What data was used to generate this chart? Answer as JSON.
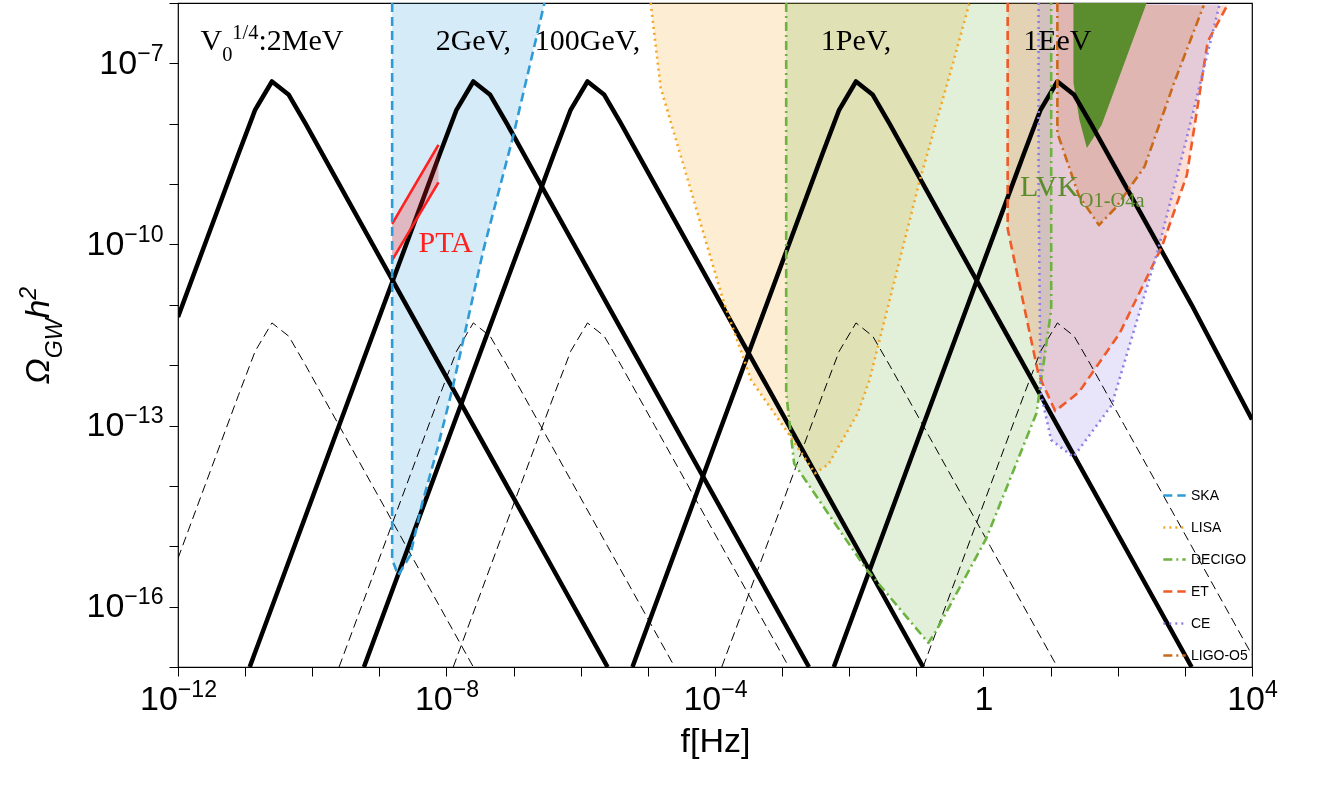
{
  "chart_data": {
    "type": "line",
    "xlabel": "f[Hz]",
    "ylabel": "Ω$_{GW}$h$^{2}$",
    "log": "xy",
    "legend": "bottom right",
    "xlim": [
      1e-12,
      10000
    ],
    "ylim": [
      1e-17,
      1e-06
    ],
    "xticks": [
      {
        "value": 1e-12,
        "label": "10$^{−12}$"
      },
      {
        "value": 1e-11,
        "label": null
      },
      {
        "value": 1e-10,
        "label": null
      },
      {
        "value": 1e-09,
        "label": null
      },
      {
        "value": 1e-08,
        "label": "10$^{−8}$"
      },
      {
        "value": 1e-07,
        "label": null
      },
      {
        "value": 1e-06,
        "label": null
      },
      {
        "value": 1e-05,
        "label": null
      },
      {
        "value": 0.0001,
        "label": "10$^{−4}$"
      },
      {
        "value": 0.001,
        "label": null
      },
      {
        "value": 0.01,
        "label": null
      },
      {
        "value": 0.1,
        "label": null
      },
      1,
      {
        "value": 10,
        "label": null
      },
      {
        "value": 100,
        "label": null
      },
      {
        "value": 1000,
        "label": null
      },
      {
        "value": 10000,
        "label": "10$^{4}$"
      }
    ],
    "yticks": [
      {
        "value": 1e-17,
        "label": null
      },
      {
        "value": 1e-16,
        "label": "10$^{−16}$"
      },
      {
        "value": 1e-15,
        "label": null
      },
      {
        "value": 1e-14,
        "label": null
      },
      {
        "value": 1e-13,
        "label": "10$^{−13}$"
      },
      {
        "value": 1e-12,
        "label": null
      },
      {
        "value": 1e-11,
        "label": null
      },
      {
        "value": 1e-10,
        "label": "10$^{−10}$"
      },
      {
        "value": 1e-09,
        "label": null
      },
      {
        "value": 1e-08,
        "label": null
      },
      {
        "value": 1e-07,
        "label": "10$^{−7}$"
      },
      {
        "value": 1e-06,
        "label": null
      }
    ],
    "annotations": [
      "V$_{0}$$^{1/4}$:2MeV",
      "2GeV,",
      "100GeV,",
      "1PeV,",
      "1EeV"
    ],
    "series": [
      {
        "color": "#000000",
        "line_style": "solid",
        "x": [
          1e-12,
          2.51e-12,
          7.94e-12,
          1.41e-11,
          2.51e-11,
          4.47e-11,
          7.94e-11,
          2.51e-10,
          2.51e-09,
          2.51e-07,
          2.51e-06
        ],
        "values": [
          6.31e-12,
          1e-10,
          3.16e-09,
          1.7e-08,
          5.01e-08,
          3.02e-08,
          1e-08,
          1e-09,
          1e-11,
          1e-15,
          1e-17
        ]
      },
      {
        "color": "#000000",
        "line_style": "solid",
        "x": [
          1.17e-11,
          2.51e-10,
          2.51e-09,
          7.94e-09,
          1.41e-08,
          2.51e-08,
          4.47e-08,
          7.94e-08,
          2.51e-07,
          2.51e-06,
          0.000251,
          0.00251
        ],
        "values": [
          1e-17,
          1e-13,
          1e-10,
          3.16e-09,
          1.7e-08,
          5.01e-08,
          3.02e-08,
          1e-08,
          1e-09,
          1e-11,
          1e-15,
          1e-17
        ]
      },
      {
        "color": "#000000",
        "line_style": "solid",
        "x": [
          5.89e-10,
          1.26e-08,
          1.26e-07,
          3.98e-07,
          7.08e-07,
          1.26e-06,
          2.24e-06,
          3.98e-06,
          1.26e-05,
          0.000126,
          0.0126,
          0.126
        ],
        "values": [
          1e-17,
          1e-13,
          1e-10,
          3.16e-09,
          1.7e-08,
          5.01e-08,
          3.02e-08,
          1e-08,
          1e-09,
          1e-11,
          1e-15,
          1e-17
        ]
      },
      {
        "color": "#000000",
        "line_style": "solid",
        "x": [
          5.89e-06,
          0.000126,
          0.00126,
          0.00398,
          0.00708,
          0.0126,
          0.0224,
          0.0398,
          0.126,
          1.26,
          126,
          1260
        ],
        "values": [
          1e-17,
          1e-13,
          1e-10,
          3.16e-09,
          1.7e-08,
          5.01e-08,
          3.02e-08,
          1e-08,
          1e-09,
          1e-11,
          1e-15,
          1e-17
        ]
      },
      {
        "color": "#000000",
        "line_style": "solid",
        "x": [
          0.00589,
          0.126,
          1.26,
          3.98,
          7.08,
          12.6,
          22.4,
          39.8,
          126,
          1260,
          10000
        ],
        "values": [
          1e-17,
          1e-13,
          1e-10,
          3.16e-09,
          1.7e-08,
          5.01e-08,
          3.02e-08,
          1e-08,
          1e-09,
          1e-11,
          1.26e-13
        ]
      },
      {
        "color": "#000000",
        "line_style": "dashed",
        "x": [
          1e-12,
          2.51e-12,
          7.94e-12,
          1.41e-11,
          2.51e-11,
          4.47e-11,
          7.94e-11,
          2.51e-10,
          2.51e-09,
          2.51e-08
        ],
        "values": [
          6.31e-16,
          1e-14,
          3.16e-13,
          1.7e-12,
          5.01e-12,
          3.02e-12,
          1e-12,
          1e-13,
          1e-15,
          1e-17
        ]
      },
      {
        "color": "#000000",
        "line_style": "dashed",
        "x": [
          2.51e-10,
          2.51e-09,
          7.94e-09,
          1.41e-08,
          2.51e-08,
          4.47e-08,
          7.94e-08,
          2.51e-07,
          2.51e-06,
          2.51e-05
        ],
        "values": [
          1e-17,
          1e-14,
          3.16e-13,
          1.7e-12,
          5.01e-12,
          3.02e-12,
          1e-12,
          1e-13,
          1e-15,
          1e-17
        ]
      },
      {
        "color": "#000000",
        "line_style": "dashed",
        "x": [
          1.26e-08,
          1.26e-07,
          3.98e-07,
          7.08e-07,
          1.26e-06,
          2.24e-06,
          3.98e-06,
          1.26e-05,
          0.000126,
          0.00126
        ],
        "values": [
          1e-17,
          1e-14,
          3.16e-13,
          1.7e-12,
          5.01e-12,
          3.02e-12,
          1e-12,
          1e-13,
          1e-15,
          1e-17
        ]
      },
      {
        "color": "#000000",
        "line_style": "dashed",
        "x": [
          0.000126,
          0.00126,
          0.00398,
          0.00708,
          0.0126,
          0.0224,
          0.0398,
          0.126,
          1.26,
          12.6
        ],
        "values": [
          1e-17,
          1e-14,
          3.16e-13,
          1.7e-12,
          5.01e-12,
          3.02e-12,
          1e-12,
          1e-13,
          1e-15,
          1e-17
        ]
      },
      {
        "color": "#000000",
        "line_style": "dashed",
        "x": [
          0.126,
          1.26,
          3.98,
          7.08,
          12.6,
          22.4,
          39.8,
          126,
          1260,
          10000
        ],
        "values": [
          1e-17,
          1e-14,
          3.16e-13,
          1.7e-12,
          5.01e-12,
          3.02e-12,
          1e-12,
          1e-13,
          1e-15,
          1.58e-17
        ]
      },
      {
        "name": "SKA",
        "type": "area",
        "color": "#2e9bd6",
        "line_style": "dashed",
        "x": [
          1.55e-09,
          1.55e-09,
          1.91e-09,
          2.88e-09,
          4.27e-09,
          7.41e-09,
          1.23e-08,
          3.55e-08,
          9.77e-08,
          2.88e-07
        ],
        "values": [
          1e-06,
          6.03e-16,
          3.31e-16,
          7.08e-16,
          4.79e-15,
          4.37e-14,
          4.17e-13,
          8.13e-11,
          6.03e-09,
          1e-06
        ]
      },
      {
        "name": "LISA",
        "type": "area",
        "color": "#f5a623",
        "line_style": "dotted",
        "x": [
          1.1e-05,
          1.55e-05,
          0.000132,
          0.000347,
          0.00115,
          0.00309,
          0.0049,
          0.0132,
          0.02,
          0.11,
          0.355,
          0.617
        ],
        "values": [
          1e-06,
          3.98e-08,
          1.2e-11,
          5.62e-13,
          8.32e-14,
          1.62e-14,
          2.29e-14,
          1.55e-13,
          5.62e-13,
          1.05e-09,
          1.05e-07,
          1e-06
        ]
      },
      {
        "name": "DECIGO",
        "type": "area",
        "color": "#6cb33f",
        "line_style": "dashdot",
        "x": [
          0.00115,
          0.00115,
          0.00151,
          0.0174,
          0.151,
          0.2,
          1.1,
          6.17,
          10.2,
          10.2
        ],
        "values": [
          1e-06,
          3.47e-13,
          2.34e-14,
          4.37e-16,
          2.51e-17,
          4.07e-17,
          1.35e-15,
          1.62e-13,
          8.32e-12,
          1e-06
        ]
      },
      {
        "name": "ET",
        "type": "area",
        "color": "#f05a28",
        "line_style": "dashed",
        "x": [
          2.29,
          2.29,
          6.61,
          11.7,
          26.3,
          107,
          457,
          1070,
          2190,
          4270
        ],
        "values": [
          1e-06,
          1.82e-10,
          6.92e-13,
          1.74e-13,
          3.55e-13,
          3.39e-12,
          9.33e-11,
          1.41e-09,
          2.29e-07,
          9.12e-07
        ]
      },
      {
        "name": "CE",
        "type": "area",
        "color": "#8c7ee8",
        "line_style": "dotted",
        "x": [
          6.61,
          6.61,
          7.08,
          10.2,
          21.9,
          81.3,
          398,
          1070,
          3310
        ],
        "values": [
          1e-06,
          1.05e-09,
          3.55e-13,
          5.75e-14,
          3.02e-14,
          2.19e-13,
          8.13e-11,
          5.89e-09,
          9.77e-07
        ]
      },
      {
        "name": "LIGO-O5",
        "type": "area",
        "color": "#c96a1a",
        "line_style": "dashdot",
        "x": [
          12.6,
          12.6,
          26.3,
          52.5,
          93.3,
          251,
          692,
          1910
        ],
        "values": [
          1e-06,
          7.08e-09,
          6.46e-10,
          2.09e-10,
          4.07e-10,
          1.95e-09,
          4.79e-08,
          9.12e-07
        ]
      },
      {
        "name": "LVK$_{O1-O4a}$",
        "type": "area",
        "color": "#5b8c2e",
        "x": [
          21.9,
          21.9,
          26.9,
          34.7,
          57.5,
          115,
          269
        ],
        "values": [
          1e-06,
          4.79e-08,
          1.15e-08,
          3.98e-09,
          9.55e-09,
          7.76e-08,
          1e-06
        ]
      },
      {
        "name": "PTA",
        "type": "area",
        "color": "#ff2020",
        "line_style": "solid",
        "x": [
          1.55e-09,
          7.59e-09
        ],
        "values": [
          null,
          null
        ],
        "lower": [
          5.5e-11,
          1.07e-09
        ],
        "upper": [
          2.19e-10,
          4.47e-09
        ]
      }
    ]
  }
}
